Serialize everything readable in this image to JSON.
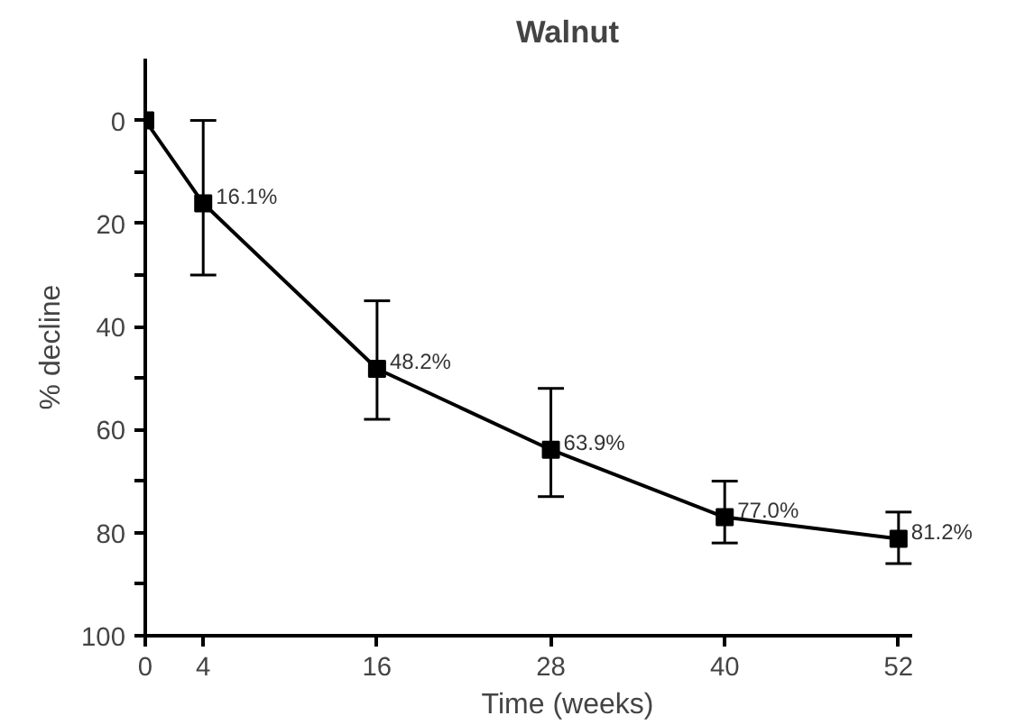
{
  "chart_data": {
    "type": "line",
    "title": "Walnut",
    "xlabel": "Time (weeks)",
    "ylabel": "% decline",
    "x": [
      0,
      4,
      16,
      28,
      40,
      52
    ],
    "series": [
      {
        "color": "#000000",
        "values": [
          0,
          16.1,
          48.2,
          63.9,
          77.0,
          81.2
        ],
        "errors": [
          null,
          [
            0,
            30
          ],
          [
            35,
            58
          ],
          [
            52,
            73
          ],
          [
            70,
            82
          ],
          [
            76,
            86
          ]
        ],
        "value_labels": [
          null,
          "16.1%",
          "48.2%",
          "63.9%",
          "77.0%",
          "81.2%"
        ]
      }
    ],
    "xlim": [
      0,
      53
    ],
    "xticks": [
      0,
      4,
      16,
      28,
      40,
      52
    ],
    "ylim": [
      100,
      -12
    ],
    "yticks": [
      0,
      {
        "value": 10,
        "label": null
      },
      20,
      {
        "value": 30,
        "label": null
      },
      40,
      {
        "value": 50,
        "label": null
      },
      60,
      {
        "value": 70,
        "label": null
      },
      80,
      {
        "value": 90,
        "label": null
      },
      100
    ],
    "marker": "square",
    "line_style": "solid",
    "grid": false
  }
}
